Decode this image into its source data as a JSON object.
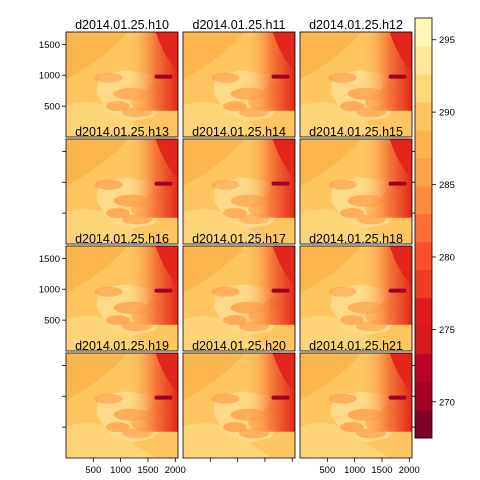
{
  "chart_data": {
    "type": "heatmap",
    "panel_titles": [
      "d2014.01.25.h10",
      "d2014.01.25.h11",
      "d2014.01.25.h12",
      "d2014.01.25.h13",
      "d2014.01.25.h14",
      "d2014.01.25.h15",
      "d2014.01.25.h16",
      "d2014.01.25.h17",
      "d2014.01.25.h18",
      "d2014.01.25.h19",
      "d2014.01.25.h20",
      "d2014.01.25.h21"
    ],
    "grid": {
      "rows": 4,
      "cols": 3
    },
    "x_range": [
      0,
      2050
    ],
    "y_range": [
      0,
      1700
    ],
    "x_ticks": [
      500,
      1000,
      1500,
      2000
    ],
    "x_tick_labels": [
      "500",
      "1000",
      "1500",
      "2000"
    ],
    "y_ticks": [
      500,
      1000,
      1500
    ],
    "y_tick_labels": [
      "500",
      "1000",
      "1500"
    ],
    "colorbar": {
      "range": [
        267.5,
        296.5
      ],
      "ticks": [
        270,
        275,
        280,
        285,
        290,
        295
      ],
      "tick_labels": [
        "270",
        "275",
        "280",
        "285",
        "290",
        "295"
      ],
      "levels": 15,
      "colors": [
        "#800026",
        "#a50026",
        "#bd0026",
        "#d7191c",
        "#e31a1c",
        "#f03b20",
        "#fc4e2a",
        "#fd6f35",
        "#fd8d3c",
        "#fea247",
        "#feb24c",
        "#fec560",
        "#fed976",
        "#ffe996",
        "#fff7b5"
      ]
    },
    "panel_fill": {
      "base": "#fec560",
      "west": "#fdb64e",
      "lowland": "#fed478",
      "region_light": "#fed98a",
      "region_dark": "#fd9a45",
      "east_warm": "#f46d33",
      "east_hot": "#e3261c",
      "ridge": "#9e0026"
    }
  }
}
